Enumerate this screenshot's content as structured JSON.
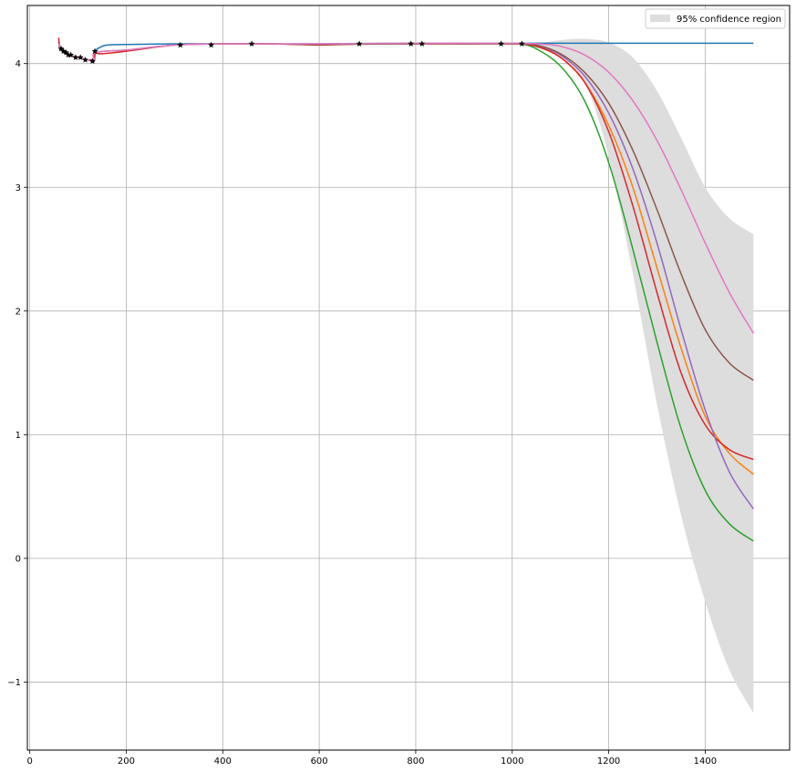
{
  "chart_data": {
    "type": "line",
    "title": "",
    "xlabel": "",
    "ylabel": "",
    "xlim": [
      -5,
      1575
    ],
    "ylim": [
      -1.55,
      4.47
    ],
    "x_ticks": [
      0,
      200,
      400,
      600,
      800,
      1000,
      1200,
      1400
    ],
    "y_ticks": [
      -1,
      0,
      1,
      2,
      3,
      4
    ],
    "grid": true,
    "legend": {
      "position": "top-right",
      "entries": [
        "95% confidence region"
      ]
    },
    "confidence_region": {
      "label": "95% confidence region",
      "color": "#dddddd",
      "x": [
        1020,
        1060,
        1100,
        1150,
        1200,
        1250,
        1300,
        1350,
        1400,
        1450,
        1500
      ],
      "upper": [
        4.16,
        4.17,
        4.19,
        4.2,
        4.17,
        4.05,
        3.78,
        3.4,
        3.0,
        2.75,
        2.62
      ],
      "lower": [
        4.15,
        4.13,
        4.05,
        3.85,
        3.25,
        2.3,
        1.25,
        0.35,
        -0.35,
        -0.9,
        -1.25
      ]
    },
    "observations": {
      "marker": "star",
      "x": [
        65,
        70,
        75,
        80,
        85,
        95,
        105,
        115,
        130,
        135,
        312,
        376,
        460,
        683,
        790,
        813,
        977,
        1020
      ],
      "y": [
        4.12,
        4.1,
        4.09,
        4.07,
        4.07,
        4.05,
        4.05,
        4.03,
        4.02,
        4.1,
        4.15,
        4.15,
        4.16,
        4.16,
        4.16,
        4.16,
        4.16,
        4.16
      ]
    },
    "series": [
      {
        "color": "#1f77b4",
        "x": [
          60,
          62,
          65,
          70,
          80,
          90,
          100,
          110,
          120,
          130,
          134,
          136,
          145,
          160,
          200,
          300,
          400,
          600,
          800,
          1000,
          1200,
          1500
        ],
        "y": [
          4.18,
          4.12,
          4.11,
          4.09,
          4.07,
          4.06,
          4.05,
          4.04,
          4.03,
          4.03,
          4.02,
          4.1,
          4.13,
          4.15,
          4.155,
          4.16,
          4.16,
          4.16,
          4.165,
          4.165,
          4.165,
          4.165
        ]
      },
      {
        "color": "#ff7f0e",
        "x": [
          1020,
          1050,
          1100,
          1150,
          1200,
          1250,
          1300,
          1350,
          1400,
          1450,
          1500
        ],
        "y": [
          4.16,
          4.14,
          4.05,
          3.85,
          3.5,
          3.0,
          2.35,
          1.7,
          1.15,
          0.85,
          0.68
        ]
      },
      {
        "color": "#2ca02c",
        "x": [
          1020,
          1050,
          1100,
          1150,
          1200,
          1250,
          1300,
          1350,
          1400,
          1450,
          1500
        ],
        "y": [
          4.16,
          4.12,
          3.98,
          3.7,
          3.2,
          2.5,
          1.75,
          1.05,
          0.55,
          0.28,
          0.14
        ]
      },
      {
        "color": "#d62728",
        "x": [
          60,
          62,
          65,
          70,
          80,
          90,
          100,
          110,
          120,
          130,
          134,
          136,
          150,
          200,
          300,
          400,
          500,
          600,
          700,
          800,
          900,
          1000,
          1050,
          1100,
          1150,
          1200,
          1250,
          1300,
          1350,
          1400,
          1450,
          1500
        ],
        "y": [
          4.21,
          4.13,
          4.11,
          4.09,
          4.07,
          4.06,
          4.05,
          4.04,
          4.03,
          4.03,
          4.02,
          4.08,
          4.08,
          4.1,
          4.15,
          4.16,
          4.16,
          4.15,
          4.16,
          4.16,
          4.16,
          4.16,
          4.14,
          4.05,
          3.85,
          3.45,
          2.85,
          2.15,
          1.5,
          1.08,
          0.88,
          0.8
        ]
      },
      {
        "color": "#9467bd",
        "x": [
          1020,
          1050,
          1100,
          1150,
          1200,
          1250,
          1300,
          1350,
          1400,
          1450,
          1500
        ],
        "y": [
          4.16,
          4.15,
          4.07,
          3.9,
          3.6,
          3.15,
          2.55,
          1.85,
          1.2,
          0.7,
          0.4
        ]
      },
      {
        "color": "#8c564b",
        "x": [
          60,
          65,
          80,
          100,
          120,
          134,
          136,
          200,
          300,
          400,
          500,
          600,
          800,
          1000,
          1050,
          1100,
          1150,
          1200,
          1250,
          1300,
          1350,
          1400,
          1450,
          1500
        ],
        "y": [
          4.17,
          4.12,
          4.07,
          4.05,
          4.03,
          4.02,
          4.09,
          4.11,
          4.15,
          4.16,
          4.16,
          4.155,
          4.16,
          4.16,
          4.15,
          4.08,
          3.93,
          3.68,
          3.3,
          2.82,
          2.3,
          1.85,
          1.58,
          1.44
        ]
      },
      {
        "color": "#e377c2",
        "x": [
          60,
          65,
          80,
          100,
          120,
          134,
          136,
          200,
          300,
          400,
          600,
          800,
          1000,
          1050,
          1100,
          1150,
          1200,
          1250,
          1300,
          1350,
          1400,
          1450,
          1500
        ],
        "y": [
          4.16,
          4.12,
          4.07,
          4.05,
          4.03,
          4.02,
          4.09,
          4.11,
          4.15,
          4.16,
          4.16,
          4.165,
          4.165,
          4.16,
          4.14,
          4.07,
          3.93,
          3.7,
          3.38,
          2.98,
          2.55,
          2.15,
          1.82
        ]
      }
    ]
  }
}
